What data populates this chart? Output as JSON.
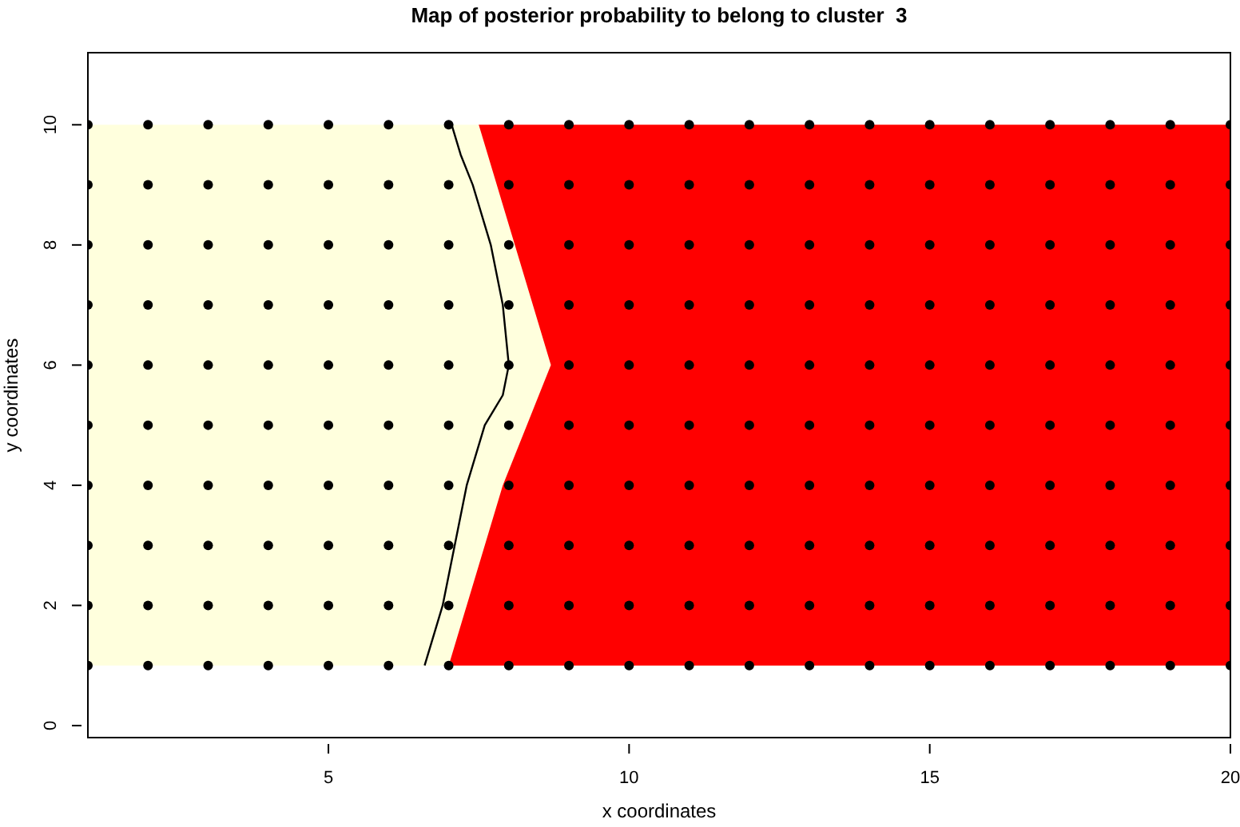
{
  "chart_data": {
    "type": "scatter",
    "title": "Map of posterior probability to belong to cluster  3",
    "xlabel": "x coordinates",
    "ylabel": "y coordinates",
    "xlim": [
      1,
      20
    ],
    "ylim": [
      -0.2,
      11.2
    ],
    "xticks": [
      5,
      10,
      15,
      20
    ],
    "yticks": [
      0,
      2,
      4,
      6,
      8,
      10
    ],
    "grid": false,
    "bands": [
      {
        "axis": "y",
        "from": 1,
        "to": 10,
        "color": "#ffffdd"
      }
    ],
    "series": [
      {
        "type": "area",
        "color": "#ff0000",
        "x": [
          7.0,
          7.3,
          7.6,
          7.9,
          8.3,
          8.7,
          8.4,
          8.1,
          7.8,
          7.5,
          20,
          20
        ],
        "values": [
          1,
          2,
          3,
          4,
          5,
          6,
          7,
          8,
          9,
          10,
          10,
          1
        ]
      },
      {
        "type": "line",
        "color": "#000000",
        "x": [
          6.6,
          6.9,
          7.1,
          7.3,
          7.6,
          7.9,
          8.0,
          7.9,
          7.7,
          7.4,
          7.2,
          7.05
        ],
        "values": [
          1,
          2,
          3,
          4,
          5,
          5.5,
          6,
          7,
          8,
          9,
          9.5,
          10
        ]
      },
      {
        "color": "#000000",
        "marker": "circle",
        "x": [
          1,
          2,
          3,
          4,
          5,
          6,
          7,
          8,
          9,
          10,
          11,
          12,
          13,
          14,
          15,
          16,
          17,
          18,
          19,
          20,
          1,
          2,
          3,
          4,
          5,
          6,
          7,
          8,
          9,
          10,
          11,
          12,
          13,
          14,
          15,
          16,
          17,
          18,
          19,
          20,
          1,
          2,
          3,
          4,
          5,
          6,
          7,
          8,
          9,
          10,
          11,
          12,
          13,
          14,
          15,
          16,
          17,
          18,
          19,
          20,
          1,
          2,
          3,
          4,
          5,
          6,
          7,
          8,
          9,
          10,
          11,
          12,
          13,
          14,
          15,
          16,
          17,
          18,
          19,
          20,
          1,
          2,
          3,
          4,
          5,
          6,
          7,
          8,
          9,
          10,
          11,
          12,
          13,
          14,
          15,
          16,
          17,
          18,
          19,
          20,
          1,
          2,
          3,
          4,
          5,
          6,
          7,
          8,
          9,
          10,
          11,
          12,
          13,
          14,
          15,
          16,
          17,
          18,
          19,
          20,
          1,
          2,
          3,
          4,
          5,
          6,
          7,
          8,
          9,
          10,
          11,
          12,
          13,
          14,
          15,
          16,
          17,
          18,
          19,
          20,
          1,
          2,
          3,
          4,
          5,
          6,
          7,
          8,
          9,
          10,
          11,
          12,
          13,
          14,
          15,
          16,
          17,
          18,
          19,
          20,
          1,
          2,
          3,
          4,
          5,
          6,
          7,
          8,
          9,
          10,
          11,
          12,
          13,
          14,
          15,
          16,
          17,
          18,
          19,
          20,
          1,
          2,
          3,
          4,
          5,
          6,
          7,
          8,
          9,
          10,
          11,
          12,
          13,
          14,
          15,
          16,
          17,
          18,
          19,
          20
        ],
        "values": [
          1,
          1,
          1,
          1,
          1,
          1,
          1,
          1,
          1,
          1,
          1,
          1,
          1,
          1,
          1,
          1,
          1,
          1,
          1,
          1,
          2,
          2,
          2,
          2,
          2,
          2,
          2,
          2,
          2,
          2,
          2,
          2,
          2,
          2,
          2,
          2,
          2,
          2,
          2,
          2,
          3,
          3,
          3,
          3,
          3,
          3,
          3,
          3,
          3,
          3,
          3,
          3,
          3,
          3,
          3,
          3,
          3,
          3,
          3,
          3,
          4,
          4,
          4,
          4,
          4,
          4,
          4,
          4,
          4,
          4,
          4,
          4,
          4,
          4,
          4,
          4,
          4,
          4,
          4,
          4,
          5,
          5,
          5,
          5,
          5,
          5,
          5,
          5,
          5,
          5,
          5,
          5,
          5,
          5,
          5,
          5,
          5,
          5,
          5,
          5,
          6,
          6,
          6,
          6,
          6,
          6,
          6,
          6,
          6,
          6,
          6,
          6,
          6,
          6,
          6,
          6,
          6,
          6,
          6,
          6,
          7,
          7,
          7,
          7,
          7,
          7,
          7,
          7,
          7,
          7,
          7,
          7,
          7,
          7,
          7,
          7,
          7,
          7,
          7,
          7,
          8,
          8,
          8,
          8,
          8,
          8,
          8,
          8,
          8,
          8,
          8,
          8,
          8,
          8,
          8,
          8,
          8,
          8,
          8,
          8,
          9,
          9,
          9,
          9,
          9,
          9,
          9,
          9,
          9,
          9,
          9,
          9,
          9,
          9,
          9,
          9,
          9,
          9,
          9,
          9,
          10,
          10,
          10,
          10,
          10,
          10,
          10,
          10,
          10,
          10,
          10,
          10,
          10,
          10,
          10,
          10,
          10,
          10,
          10,
          10
        ]
      }
    ]
  }
}
